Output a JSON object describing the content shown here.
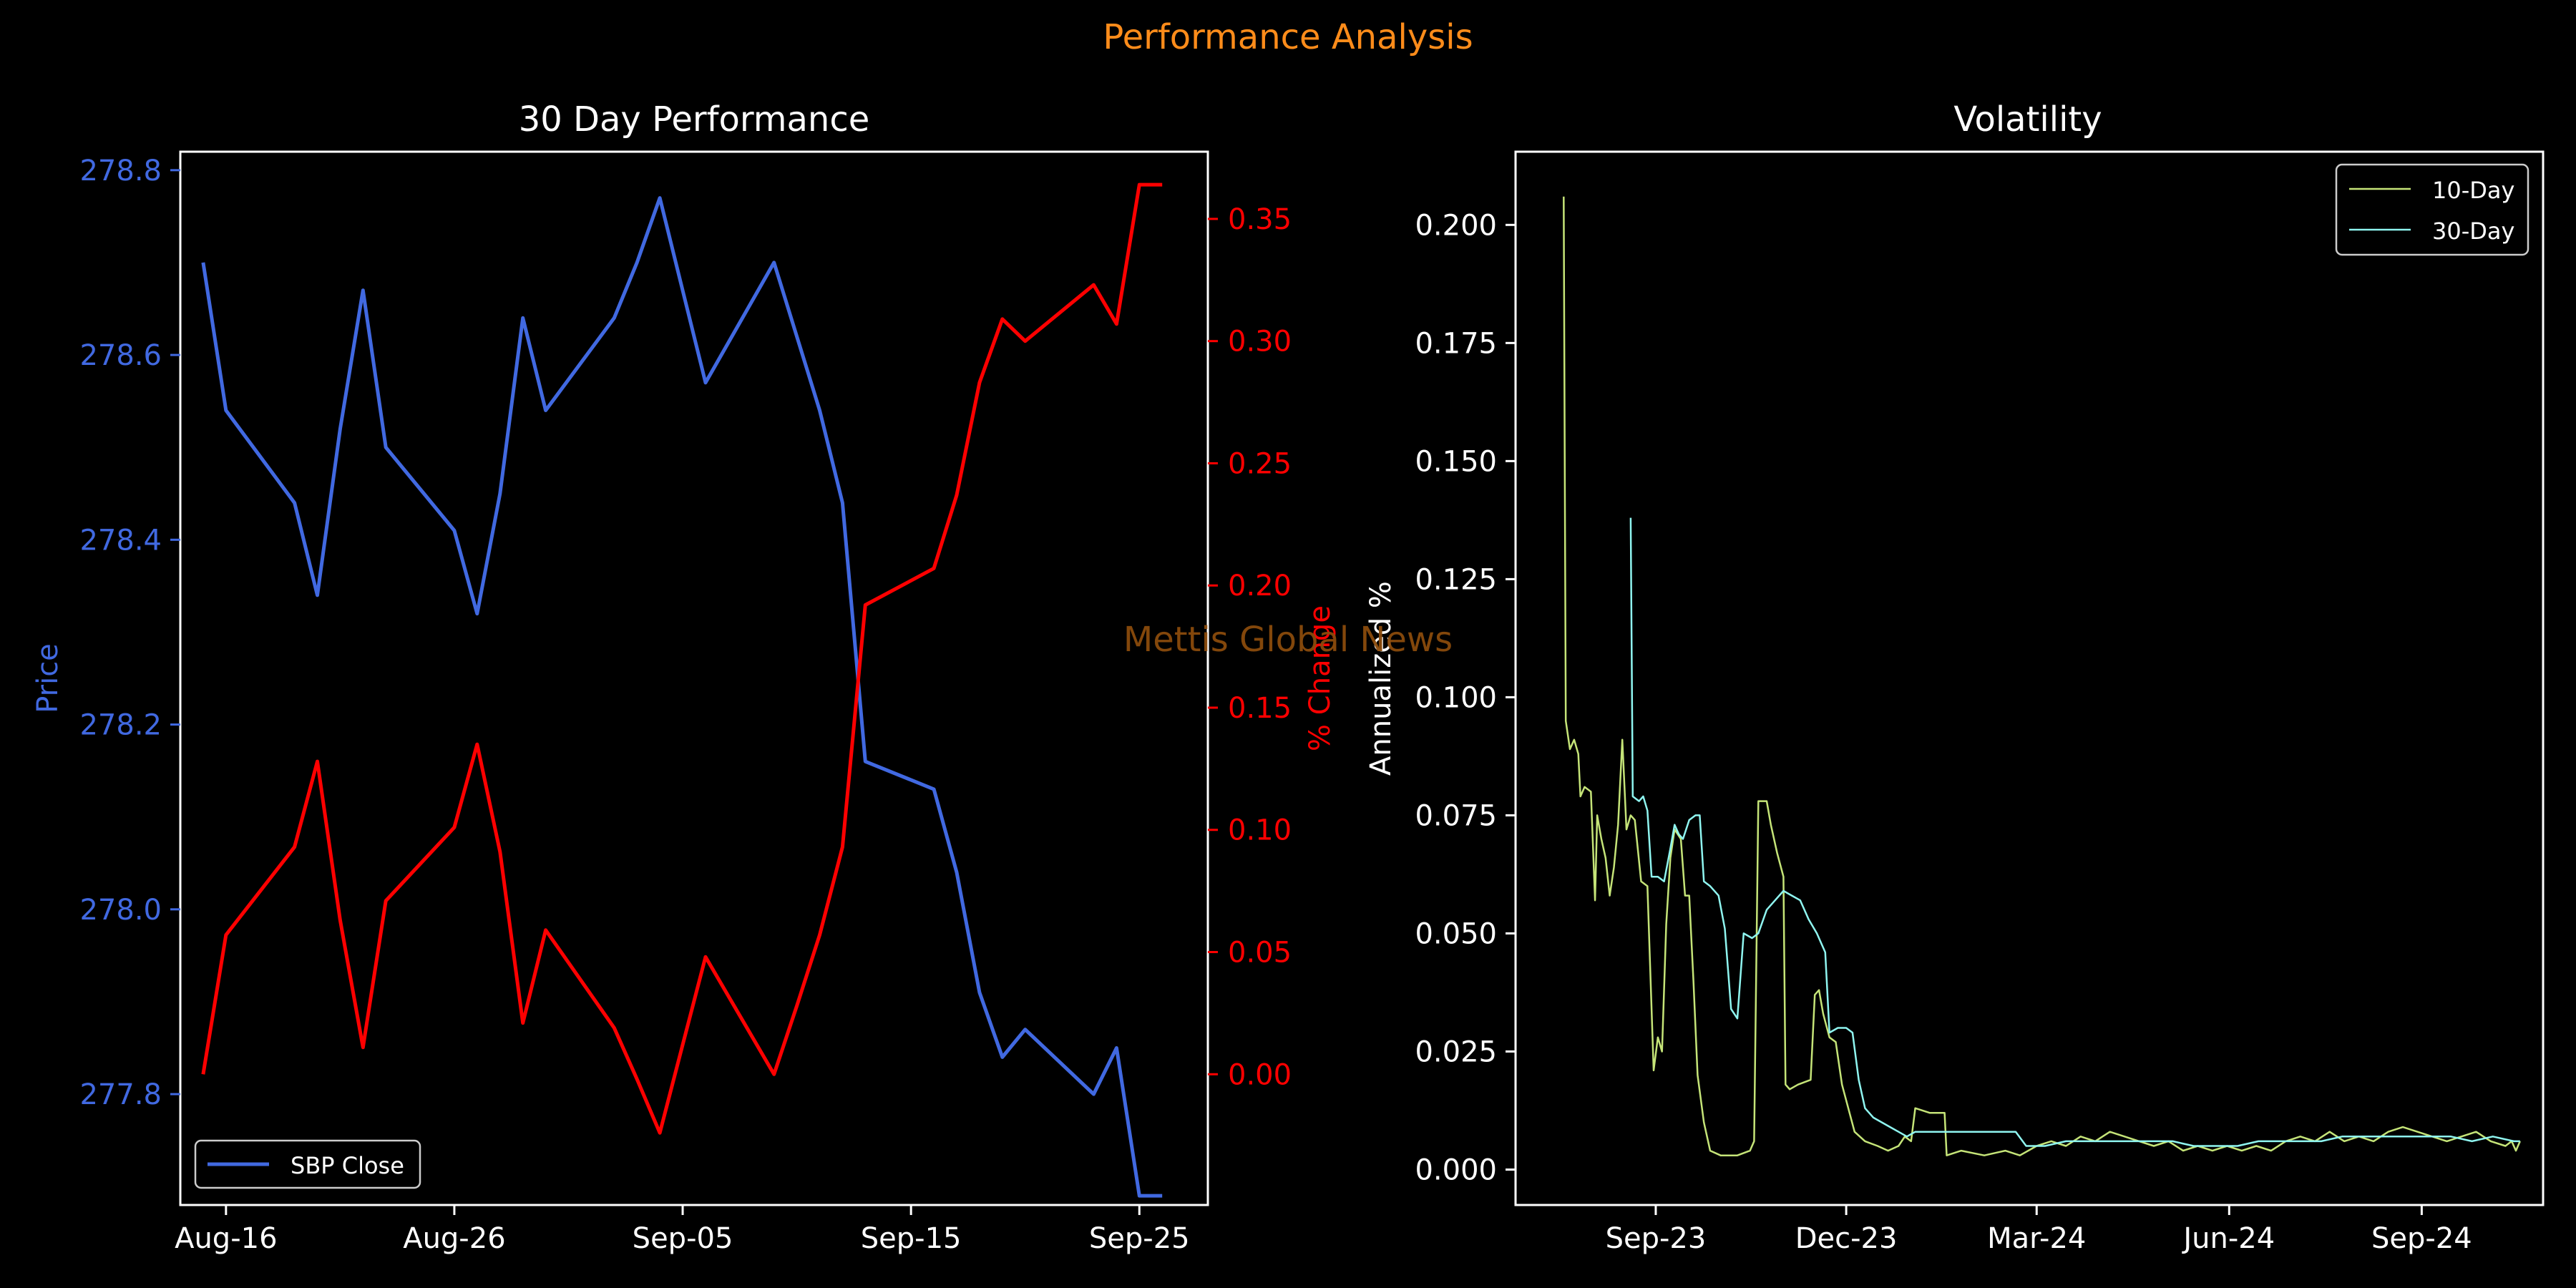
{
  "figure": {
    "suptitle": "Performance Analysis",
    "watermark": "Mettis Global News",
    "colors": {
      "background": "#000000",
      "suptitle": "#ff8c1a",
      "watermark": "#8a4b0c",
      "axis_frame": "#ffffff",
      "text": "#ffffff",
      "price": "#4169e1",
      "change": "#ff0000",
      "vol10": "#c5e478",
      "vol30": "#8ff5f0"
    }
  },
  "chart_data": [
    {
      "type": "line",
      "title": "30 Day Performance",
      "xlabel": "",
      "ylabel": "Price",
      "ylabel_right": "% Change",
      "x_ticks": [
        "Aug-16",
        "Aug-26",
        "Sep-05",
        "Sep-15",
        "Sep-25"
      ],
      "y_ticks": [
        "277.8",
        "278.0",
        "278.2",
        "278.4",
        "278.6",
        "278.8"
      ],
      "y_right_ticks": [
        "0.00",
        "0.05",
        "0.10",
        "0.15",
        "0.20",
        "0.25",
        "0.30",
        "0.35"
      ],
      "ylim": [
        277.68,
        278.82
      ],
      "ylim_right": [
        -0.0535,
        0.3775
      ],
      "xlim": [
        "2024-08-14",
        "2024-09-28"
      ],
      "legend": {
        "placement": "lower-left",
        "entries": [
          "SBP Close"
        ]
      },
      "grid": false,
      "dates": [
        "2024-08-15",
        "2024-08-16",
        "2024-08-19",
        "2024-08-20",
        "2024-08-21",
        "2024-08-22",
        "2024-08-23",
        "2024-08-26",
        "2024-08-27",
        "2024-08-28",
        "2024-08-29",
        "2024-08-30",
        "2024-09-02",
        "2024-09-03",
        "2024-09-04",
        "2024-09-05",
        "2024-09-06",
        "2024-09-09",
        "2024-09-10",
        "2024-09-11",
        "2024-09-12",
        "2024-09-13",
        "2024-09-16",
        "2024-09-17",
        "2024-09-18",
        "2024-09-19",
        "2024-09-20",
        "2024-09-23",
        "2024-09-24",
        "2024-09-25",
        "2024-09-26"
      ],
      "series": [
        {
          "name": "SBP Close",
          "axis": "left",
          "values": [
            278.7,
            278.54,
            278.44,
            278.34,
            278.52,
            278.67,
            278.5,
            278.41,
            278.32,
            278.45,
            278.64,
            278.54,
            278.64,
            278.7,
            278.77,
            278.67,
            278.57,
            278.7,
            278.62,
            278.54,
            278.44,
            278.16,
            278.13,
            278.04,
            277.91,
            277.84,
            277.87,
            277.8,
            277.85,
            277.69,
            277.69
          ]
        },
        {
          "axis": "right",
          "values": [
            0.0,
            0.057,
            0.093,
            0.128,
            0.063,
            0.011,
            0.071,
            0.101,
            0.135,
            0.091,
            0.021,
            0.059,
            0.019,
            -0.002,
            -0.024,
            0.012,
            0.048,
            0.0,
            0.028,
            0.057,
            0.093,
            0.192,
            0.207,
            0.237,
            0.283,
            0.309,
            0.3,
            0.323,
            0.307,
            0.364,
            0.364
          ]
        }
      ]
    },
    {
      "type": "line",
      "title": "Volatility",
      "xlabel": "",
      "ylabel": "Annualized %",
      "x_ticks": [
        "Sep-23",
        "Dec-23",
        "Mar-24",
        "Jun-24",
        "Sep-24"
      ],
      "y_ticks": [
        "0.000",
        "0.025",
        "0.050",
        "0.075",
        "0.100",
        "0.125",
        "0.150",
        "0.175",
        "0.200"
      ],
      "ylim": [
        -0.0075,
        0.2155
      ],
      "xlim": [
        "2023-06-26",
        "2024-10-29"
      ],
      "legend": {
        "placement": "upper-right",
        "entries": [
          "10-Day",
          "30-Day"
        ]
      },
      "grid": false,
      "series": [
        {
          "name": "10-Day",
          "points": [
            [
              "2023-07-19",
              0.206
            ],
            [
              "2023-07-20",
              0.095
            ],
            [
              "2023-07-22",
              0.089
            ],
            [
              "2023-07-24",
              0.091
            ],
            [
              "2023-07-26",
              0.088
            ],
            [
              "2023-07-27",
              0.079
            ],
            [
              "2023-07-29",
              0.081
            ],
            [
              "2023-08-01",
              0.08
            ],
            [
              "2023-08-03",
              0.057
            ],
            [
              "2023-08-04",
              0.075
            ],
            [
              "2023-08-06",
              0.07
            ],
            [
              "2023-08-08",
              0.066
            ],
            [
              "2023-08-10",
              0.058
            ],
            [
              "2023-08-12",
              0.064
            ],
            [
              "2023-08-14",
              0.073
            ],
            [
              "2023-08-16",
              0.091
            ],
            [
              "2023-08-18",
              0.072
            ],
            [
              "2023-08-20",
              0.075
            ],
            [
              "2023-08-22",
              0.074
            ],
            [
              "2023-08-25",
              0.061
            ],
            [
              "2023-08-28",
              0.06
            ],
            [
              "2023-08-31",
              0.021
            ],
            [
              "2023-09-02",
              0.028
            ],
            [
              "2023-09-04",
              0.025
            ],
            [
              "2023-09-06",
              0.052
            ],
            [
              "2023-09-08",
              0.066
            ],
            [
              "2023-09-10",
              0.072
            ],
            [
              "2023-09-13",
              0.07
            ],
            [
              "2023-09-15",
              0.058
            ],
            [
              "2023-09-17",
              0.058
            ],
            [
              "2023-09-19",
              0.04
            ],
            [
              "2023-09-21",
              0.02
            ],
            [
              "2023-09-24",
              0.01
            ],
            [
              "2023-09-27",
              0.004
            ],
            [
              "2023-10-02",
              0.003
            ],
            [
              "2023-10-10",
              0.003
            ],
            [
              "2023-10-16",
              0.004
            ],
            [
              "2023-10-18",
              0.006
            ],
            [
              "2023-10-20",
              0.078
            ],
            [
              "2023-10-24",
              0.078
            ],
            [
              "2023-10-26",
              0.073
            ],
            [
              "2023-10-29",
              0.067
            ],
            [
              "2023-11-01",
              0.062
            ],
            [
              "2023-11-02",
              0.018
            ],
            [
              "2023-11-04",
              0.017
            ],
            [
              "2023-11-08",
              0.018
            ],
            [
              "2023-11-14",
              0.019
            ],
            [
              "2023-11-16",
              0.037
            ],
            [
              "2023-11-18",
              0.038
            ],
            [
              "2023-11-20",
              0.033
            ],
            [
              "2023-11-23",
              0.028
            ],
            [
              "2023-11-26",
              0.027
            ],
            [
              "2023-11-29",
              0.018
            ],
            [
              "2023-12-02",
              0.013
            ],
            [
              "2023-12-05",
              0.008
            ],
            [
              "2023-12-10",
              0.006
            ],
            [
              "2023-12-16",
              0.005
            ],
            [
              "2023-12-21",
              0.004
            ],
            [
              "2023-12-26",
              0.005
            ],
            [
              "2023-12-29",
              0.007
            ],
            [
              "2024-01-01",
              0.006
            ],
            [
              "2024-01-03",
              0.013
            ],
            [
              "2024-01-10",
              0.012
            ],
            [
              "2024-01-17",
              0.012
            ],
            [
              "2024-01-18",
              0.003
            ],
            [
              "2024-01-25",
              0.004
            ],
            [
              "2024-02-05",
              0.003
            ],
            [
              "2024-02-15",
              0.004
            ],
            [
              "2024-02-22",
              0.003
            ],
            [
              "2024-03-01",
              0.005
            ],
            [
              "2024-03-08",
              0.006
            ],
            [
              "2024-03-15",
              0.005
            ],
            [
              "2024-03-22",
              0.007
            ],
            [
              "2024-03-29",
              0.006
            ],
            [
              "2024-04-05",
              0.008
            ],
            [
              "2024-04-12",
              0.007
            ],
            [
              "2024-04-19",
              0.006
            ],
            [
              "2024-04-26",
              0.005
            ],
            [
              "2024-05-03",
              0.006
            ],
            [
              "2024-05-10",
              0.004
            ],
            [
              "2024-05-17",
              0.005
            ],
            [
              "2024-05-24",
              0.004
            ],
            [
              "2024-05-31",
              0.005
            ],
            [
              "2024-06-07",
              0.004
            ],
            [
              "2024-06-14",
              0.005
            ],
            [
              "2024-06-21",
              0.004
            ],
            [
              "2024-06-28",
              0.006
            ],
            [
              "2024-07-05",
              0.007
            ],
            [
              "2024-07-12",
              0.006
            ],
            [
              "2024-07-19",
              0.008
            ],
            [
              "2024-07-26",
              0.006
            ],
            [
              "2024-08-02",
              0.007
            ],
            [
              "2024-08-09",
              0.006
            ],
            [
              "2024-08-16",
              0.008
            ],
            [
              "2024-08-23",
              0.009
            ],
            [
              "2024-08-30",
              0.008
            ],
            [
              "2024-09-06",
              0.007
            ],
            [
              "2024-09-13",
              0.006
            ],
            [
              "2024-09-20",
              0.007
            ],
            [
              "2024-09-27",
              0.008
            ],
            [
              "2024-10-04",
              0.006
            ],
            [
              "2024-10-11",
              0.005
            ],
            [
              "2024-10-14",
              0.006
            ],
            [
              "2024-10-16",
              0.004
            ],
            [
              "2024-10-18",
              0.006
            ]
          ]
        },
        {
          "name": "30-Day",
          "points": [
            [
              "2023-08-20",
              0.138
            ],
            [
              "2023-08-21",
              0.079
            ],
            [
              "2023-08-24",
              0.078
            ],
            [
              "2023-08-26",
              0.079
            ],
            [
              "2023-08-28",
              0.076
            ],
            [
              "2023-08-30",
              0.062
            ],
            [
              "2023-09-02",
              0.062
            ],
            [
              "2023-09-05",
              0.061
            ],
            [
              "2023-09-08",
              0.068
            ],
            [
              "2023-09-10",
              0.073
            ],
            [
              "2023-09-12",
              0.071
            ],
            [
              "2023-09-14",
              0.07
            ],
            [
              "2023-09-17",
              0.074
            ],
            [
              "2023-09-20",
              0.075
            ],
            [
              "2023-09-22",
              0.075
            ],
            [
              "2023-09-24",
              0.061
            ],
            [
              "2023-09-27",
              0.06
            ],
            [
              "2023-10-01",
              0.058
            ],
            [
              "2023-10-04",
              0.051
            ],
            [
              "2023-10-07",
              0.034
            ],
            [
              "2023-10-10",
              0.032
            ],
            [
              "2023-10-13",
              0.05
            ],
            [
              "2023-10-17",
              0.049
            ],
            [
              "2023-10-20",
              0.05
            ],
            [
              "2023-10-24",
              0.055
            ],
            [
              "2023-10-28",
              0.057
            ],
            [
              "2023-11-01",
              0.059
            ],
            [
              "2023-11-05",
              0.058
            ],
            [
              "2023-11-09",
              0.057
            ],
            [
              "2023-11-13",
              0.053
            ],
            [
              "2023-11-17",
              0.05
            ],
            [
              "2023-11-21",
              0.046
            ],
            [
              "2023-11-23",
              0.029
            ],
            [
              "2023-11-27",
              0.03
            ],
            [
              "2023-12-01",
              0.03
            ],
            [
              "2023-12-04",
              0.029
            ],
            [
              "2023-12-07",
              0.019
            ],
            [
              "2023-12-10",
              0.013
            ],
            [
              "2023-12-14",
              0.011
            ],
            [
              "2023-12-18",
              0.01
            ],
            [
              "2023-12-22",
              0.009
            ],
            [
              "2023-12-26",
              0.008
            ],
            [
              "2023-12-30",
              0.007
            ],
            [
              "2024-01-03",
              0.008
            ],
            [
              "2024-01-10",
              0.008
            ],
            [
              "2024-01-20",
              0.008
            ],
            [
              "2024-02-01",
              0.008
            ],
            [
              "2024-02-10",
              0.008
            ],
            [
              "2024-02-20",
              0.008
            ],
            [
              "2024-02-25",
              0.005
            ],
            [
              "2024-03-05",
              0.005
            ],
            [
              "2024-03-15",
              0.006
            ],
            [
              "2024-03-25",
              0.006
            ],
            [
              "2024-04-05",
              0.006
            ],
            [
              "2024-04-15",
              0.006
            ],
            [
              "2024-04-25",
              0.006
            ],
            [
              "2024-05-05",
              0.006
            ],
            [
              "2024-05-15",
              0.005
            ],
            [
              "2024-05-25",
              0.005
            ],
            [
              "2024-06-05",
              0.005
            ],
            [
              "2024-06-15",
              0.006
            ],
            [
              "2024-06-25",
              0.006
            ],
            [
              "2024-07-05",
              0.006
            ],
            [
              "2024-07-15",
              0.006
            ],
            [
              "2024-07-25",
              0.007
            ],
            [
              "2024-08-05",
              0.007
            ],
            [
              "2024-08-15",
              0.007
            ],
            [
              "2024-08-25",
              0.007
            ],
            [
              "2024-09-05",
              0.007
            ],
            [
              "2024-09-15",
              0.007
            ],
            [
              "2024-09-25",
              0.006
            ],
            [
              "2024-10-05",
              0.007
            ],
            [
              "2024-10-15",
              0.006
            ],
            [
              "2024-10-18",
              0.006
            ]
          ]
        }
      ]
    }
  ]
}
